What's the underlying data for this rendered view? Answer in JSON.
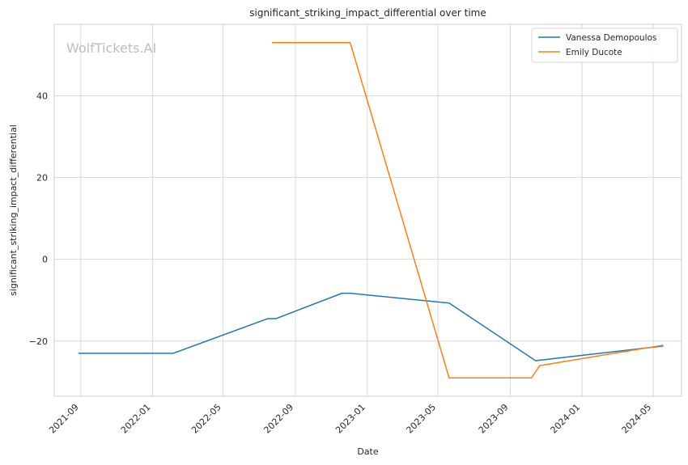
{
  "chart_data": {
    "type": "line",
    "title": "significant_striking_impact_differential over time",
    "xlabel": "Date",
    "ylabel": "significant_striking_impact_differential",
    "watermark": "WolfTickets.AI",
    "x_ticks": [
      "2021-09",
      "2022-01",
      "2022-05",
      "2022-09",
      "2023-01",
      "2023-05",
      "2023-09",
      "2024-01",
      "2024-05"
    ],
    "y_ticks": [
      -20,
      0,
      20,
      40
    ],
    "xlim": [
      "2021-07-18",
      "2024-06-18"
    ],
    "ylim": [
      -33.5,
      57.5
    ],
    "grid": true,
    "legend_position": "top-right",
    "series": [
      {
        "name": "Vanessa Demopoulos",
        "color": "#1f77b4",
        "points": [
          {
            "x": "2021-08-28",
            "y": -23
          },
          {
            "x": "2022-02-05",
            "y": -23
          },
          {
            "x": "2022-07-16",
            "y": -14.5
          },
          {
            "x": "2022-07-30",
            "y": -14.5
          },
          {
            "x": "2022-11-19",
            "y": -8.3
          },
          {
            "x": "2022-12-03",
            "y": -8.3
          },
          {
            "x": "2023-05-20",
            "y": -10.7
          },
          {
            "x": "2023-10-14",
            "y": -24.8
          },
          {
            "x": "2024-05-18",
            "y": -21.2
          }
        ]
      },
      {
        "name": "Emily Ducote",
        "color": "#ff7f0e",
        "points": [
          {
            "x": "2022-07-23",
            "y": 53
          },
          {
            "x": "2022-12-03",
            "y": 53
          },
          {
            "x": "2023-05-20",
            "y": -29
          },
          {
            "x": "2023-10-07",
            "y": -29
          },
          {
            "x": "2023-10-21",
            "y": -26
          },
          {
            "x": "2024-05-18",
            "y": -21
          }
        ]
      }
    ]
  }
}
